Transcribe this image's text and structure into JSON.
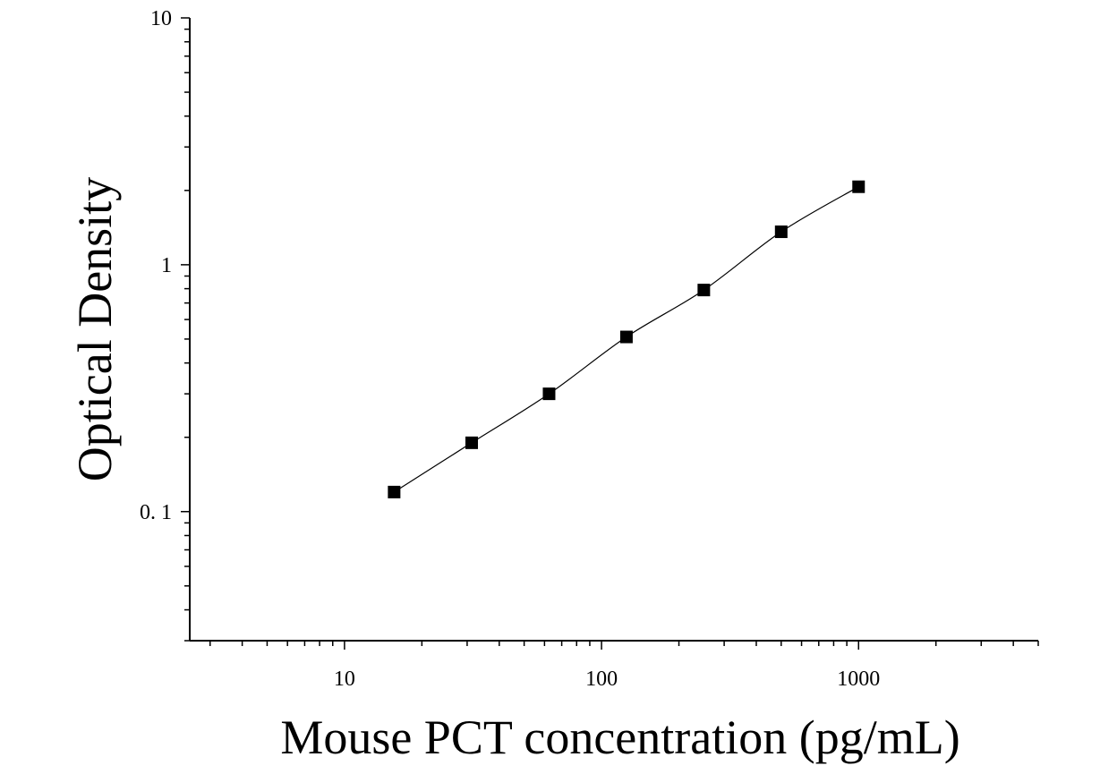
{
  "chart_data": {
    "type": "scatter",
    "xlabel": "Mouse PCT concentration (pg/mL)",
    "ylabel": "Optical Density",
    "x_scale": "log",
    "y_scale": "log",
    "xlim": [
      2.5,
      5000
    ],
    "ylim": [
      0.03,
      10
    ],
    "x_ticks": [
      10,
      100,
      1000
    ],
    "x_tick_labels": [
      "10",
      "100",
      "1000"
    ],
    "y_ticks": [
      0.1,
      1,
      10
    ],
    "y_tick_labels": [
      "0. 1",
      "1",
      "10"
    ],
    "grid": false,
    "legend": "none",
    "series": [
      {
        "marker": "square",
        "color": "#000000",
        "x": [
          15.6,
          31.25,
          62.5,
          125,
          250,
          500,
          1000
        ],
        "y": [
          0.12,
          0.19,
          0.3,
          0.51,
          0.79,
          1.36,
          2.07
        ]
      }
    ],
    "fit": {
      "type": "smooth-curve",
      "color": "#000000"
    }
  }
}
